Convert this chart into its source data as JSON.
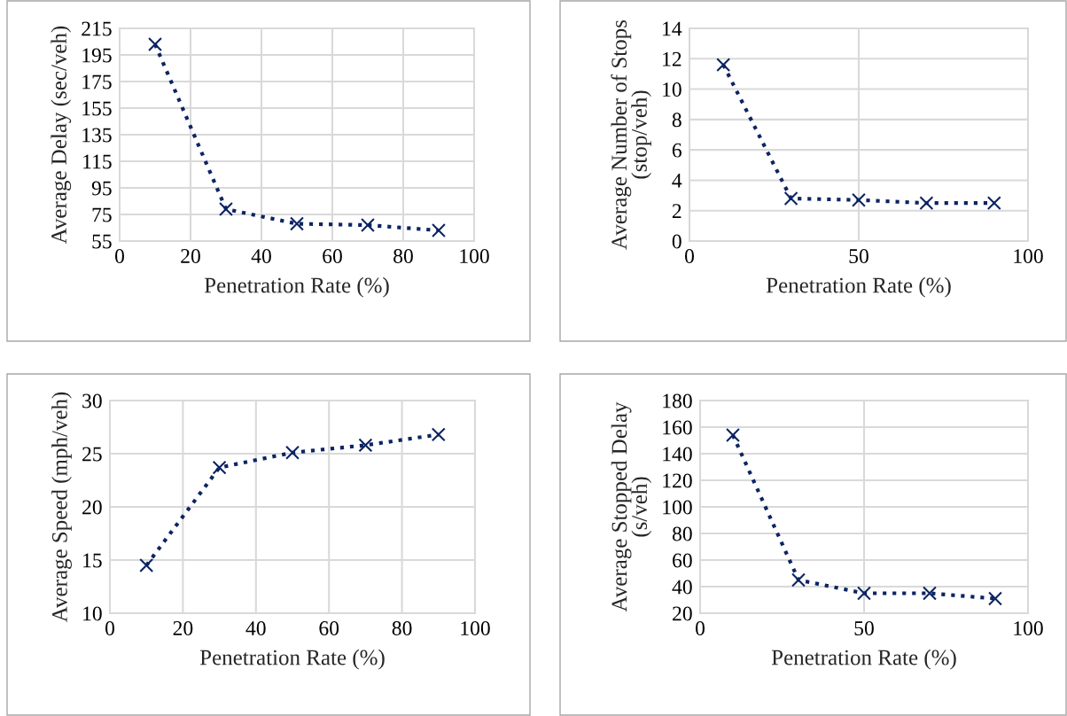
{
  "chart_data": [
    {
      "type": "line",
      "xlabel": "Penetration Rate (%)",
      "ylabel": "Average Delay (sec/veh)",
      "x": [
        10,
        30,
        50,
        70,
        90
      ],
      "series": [
        {
          "color": "#0b2463",
          "values": [
            203,
            79,
            68,
            67,
            63
          ]
        }
      ],
      "xlim": [
        0,
        100
      ],
      "xticks": [
        0,
        20,
        40,
        60,
        80,
        100
      ],
      "ylim": [
        55,
        215
      ],
      "yticks": [
        55,
        75,
        95,
        115,
        135,
        155,
        175,
        195,
        215
      ],
      "grid": true,
      "marker": "cross",
      "line_style": "dotted"
    },
    {
      "type": "line",
      "xlabel": "Penetration Rate (%)",
      "ylabel": "Average Number of Stops\n(stop/veh)",
      "x": [
        10,
        30,
        50,
        70,
        90
      ],
      "series": [
        {
          "color": "#0b2463",
          "values": [
            11.6,
            2.8,
            2.7,
            2.5,
            2.5
          ]
        }
      ],
      "xlim": [
        0,
        100
      ],
      "xticks": [
        0,
        50,
        100
      ],
      "ylim": [
        0,
        14
      ],
      "yticks": [
        0,
        2,
        4,
        6,
        8,
        10,
        12,
        14
      ],
      "grid": true,
      "marker": "cross",
      "line_style": "dotted"
    },
    {
      "type": "line",
      "xlabel": "Penetration Rate (%)",
      "ylabel": "Average Speed (mph/veh)",
      "x": [
        10,
        30,
        50,
        70,
        90
      ],
      "series": [
        {
          "color": "#0b2463",
          "values": [
            14.5,
            23.7,
            25.1,
            25.8,
            26.8
          ]
        }
      ],
      "xlim": [
        0,
        100
      ],
      "xticks": [
        0,
        20,
        40,
        60,
        80,
        100
      ],
      "ylim": [
        10,
        30
      ],
      "yticks": [
        10,
        15,
        20,
        25,
        30
      ],
      "grid": true,
      "marker": "cross",
      "line_style": "dotted"
    },
    {
      "type": "line",
      "xlabel": "Penetration Rate (%)",
      "ylabel": "Average Stopped Delay\n(s/veh)",
      "x": [
        10,
        30,
        50,
        70,
        90
      ],
      "series": [
        {
          "color": "#0b2463",
          "values": [
            154,
            45,
            35,
            35,
            31
          ]
        }
      ],
      "xlim": [
        0,
        100
      ],
      "xticks": [
        0,
        50,
        100
      ],
      "ylim": [
        20,
        180
      ],
      "yticks": [
        20,
        40,
        60,
        80,
        100,
        120,
        140,
        160,
        180
      ],
      "grid": true,
      "marker": "cross",
      "line_style": "dotted"
    }
  ]
}
